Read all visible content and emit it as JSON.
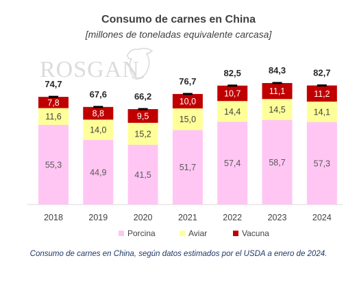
{
  "chart_data": {
    "type": "bar",
    "stacked": true,
    "title": "Consumo  de carnes en China",
    "subtitle": "[millones de toneladas equivalente carcasa]",
    "categories": [
      "2018",
      "2019",
      "2020",
      "2021",
      "2022",
      "2023",
      "2024"
    ],
    "series": [
      {
        "name": "Porcina",
        "color": "#ffc6f4",
        "values": [
          55.3,
          44.9,
          41.5,
          51.7,
          57.4,
          58.7,
          57.3
        ],
        "labels": [
          "55,3",
          "44,9",
          "41,5",
          "51,7",
          "57,4",
          "58,7",
          "57,3"
        ]
      },
      {
        "name": "Aviar",
        "color": "#ffff99",
        "values": [
          11.6,
          14.0,
          15.2,
          15.0,
          14.4,
          14.5,
          14.1
        ],
        "labels": [
          "11,6",
          "14,0",
          "15,2",
          "15,0",
          "14,4",
          "14,5",
          "14,1"
        ]
      },
      {
        "name": "Vacuna",
        "color": "#c00000",
        "values": [
          7.8,
          8.8,
          9.5,
          10.0,
          10.7,
          11.1,
          11.2
        ],
        "labels": [
          "7,8",
          "8,8",
          "9,5",
          "10,0",
          "10,7",
          "11,1",
          "11,2"
        ]
      }
    ],
    "totals": [
      74.7,
      67.6,
      66.2,
      76.7,
      82.5,
      84.3,
      82.7
    ],
    "total_labels": [
      "74,7",
      "67,6",
      "66,2",
      "76,7",
      "82,5",
      "84,3",
      "82,7"
    ],
    "ylim": [
      0,
      100
    ],
    "grid": false,
    "legend_position": "bottom"
  },
  "watermark": "ROSGAN",
  "caption": "Consumo de carnes en China, según datos estimados por el USDA a enero de 2024."
}
